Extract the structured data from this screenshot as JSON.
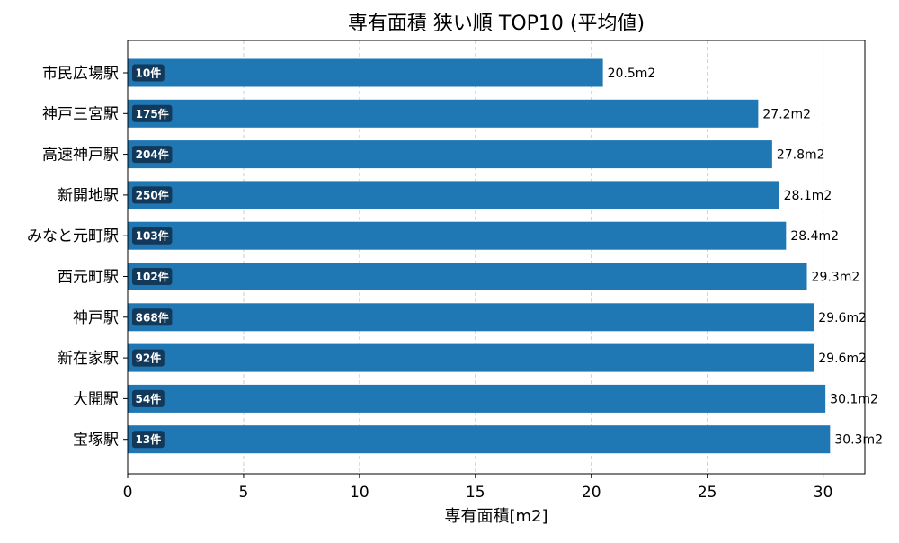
{
  "chart_data": {
    "type": "bar",
    "orientation": "horizontal",
    "title": "専有面積 狭い順 TOP10 (平均値)",
    "xlabel": "専有面積[m2]",
    "ylabel": "",
    "xlim": [
      0,
      31.8
    ],
    "xticks": [
      0,
      5,
      10,
      15,
      20,
      25,
      30
    ],
    "grid": {
      "x": true,
      "y": false,
      "style": "dashed"
    },
    "bar_color": "#1f77b4",
    "badge_color": "#12395a",
    "value_suffix": "m2",
    "categories": [
      "市民広場駅",
      "神戸三宮駅",
      "高速神戸駅",
      "新開地駅",
      "みなと元町駅",
      "西元町駅",
      "神戸駅",
      "新在家駅",
      "大開駅",
      "宝塚駅"
    ],
    "values": [
      20.5,
      27.2,
      27.8,
      28.1,
      28.4,
      29.3,
      29.6,
      29.6,
      30.1,
      30.3
    ],
    "value_labels": [
      "20.5m2",
      "27.2m2",
      "27.8m2",
      "28.1m2",
      "28.4m2",
      "29.3m2",
      "29.6m2",
      "29.6m2",
      "30.1m2",
      "30.3m2"
    ],
    "counts": [
      "10件",
      "175件",
      "204件",
      "250件",
      "103件",
      "102件",
      "868件",
      "92件",
      "54件",
      "13件"
    ]
  }
}
